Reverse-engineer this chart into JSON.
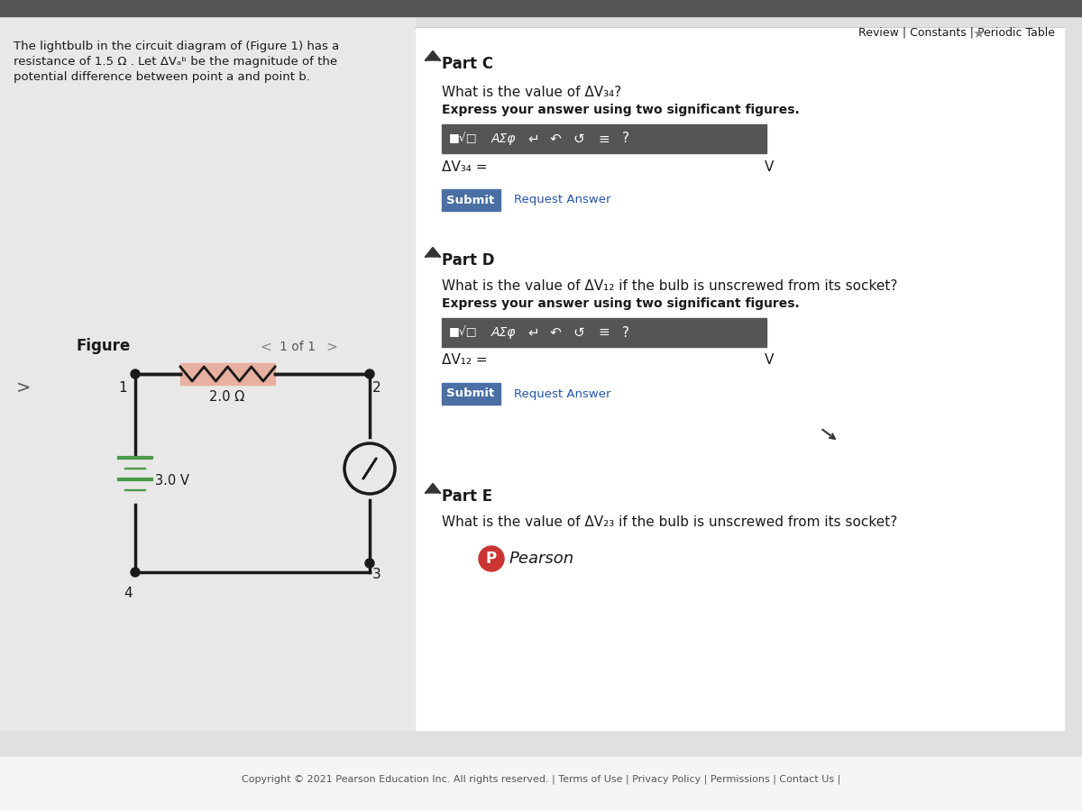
{
  "bg_color": "#d8d8d8",
  "page_bg": "#e8e8e8",
  "white_panel": "#ffffff",
  "top_bar_color": "#f0f0f0",
  "header_text": "Review | Constants | Periodic Table",
  "problem_text_line1": "The lightbulb in the circuit diagram of (Figure 1) has a",
  "problem_text_line2": "resistance of 1.5 Ω . Let ΔVₐᵇ be the magnitude of the",
  "problem_text_line3": "potential difference between point a and point b.",
  "figure_label": "Figure",
  "figure_nav": "1 of 1",
  "partC_label": "Part C",
  "partC_question": "What is the value of ΔV₃₄?",
  "partC_instruction": "Express your answer using two significant figures.",
  "partC_var": "ΔV₃₄ =",
  "partC_unit": "V",
  "partD_label": "Part D",
  "partD_question": "What is the value of ΔV₁₂ if the bulb is unscrewed from its socket?",
  "partD_instruction": "Express your answer using two significant figures.",
  "partD_var": "ΔV₁₂ =",
  "partD_unit": "V",
  "partE_label": "Part E",
  "partE_question": "What is the value of ΔV₂₃ if the bulb is unscrewed from its socket?",
  "resistor_label": "2.0 Ω",
  "battery_label": "3.0 V",
  "circuit_wire_color": "#1a1a1a",
  "resistor_bg": "#e8b0a0",
  "battery_color": "#4a9a4a",
  "node_color": "#1a1a1a",
  "submit_bg": "#4a6fa5",
  "submit_text": "white",
  "request_answer_color": "#2255aa",
  "pearson_logo_color": "#cc3333",
  "footer_text": "Copyright © 2021 Pearson Education Inc. All rights reserved. | Terms of Use | Privacy Policy | Permissions | Contact Us |",
  "toolbar_bg": "#555555",
  "arrow_color": "#333333"
}
